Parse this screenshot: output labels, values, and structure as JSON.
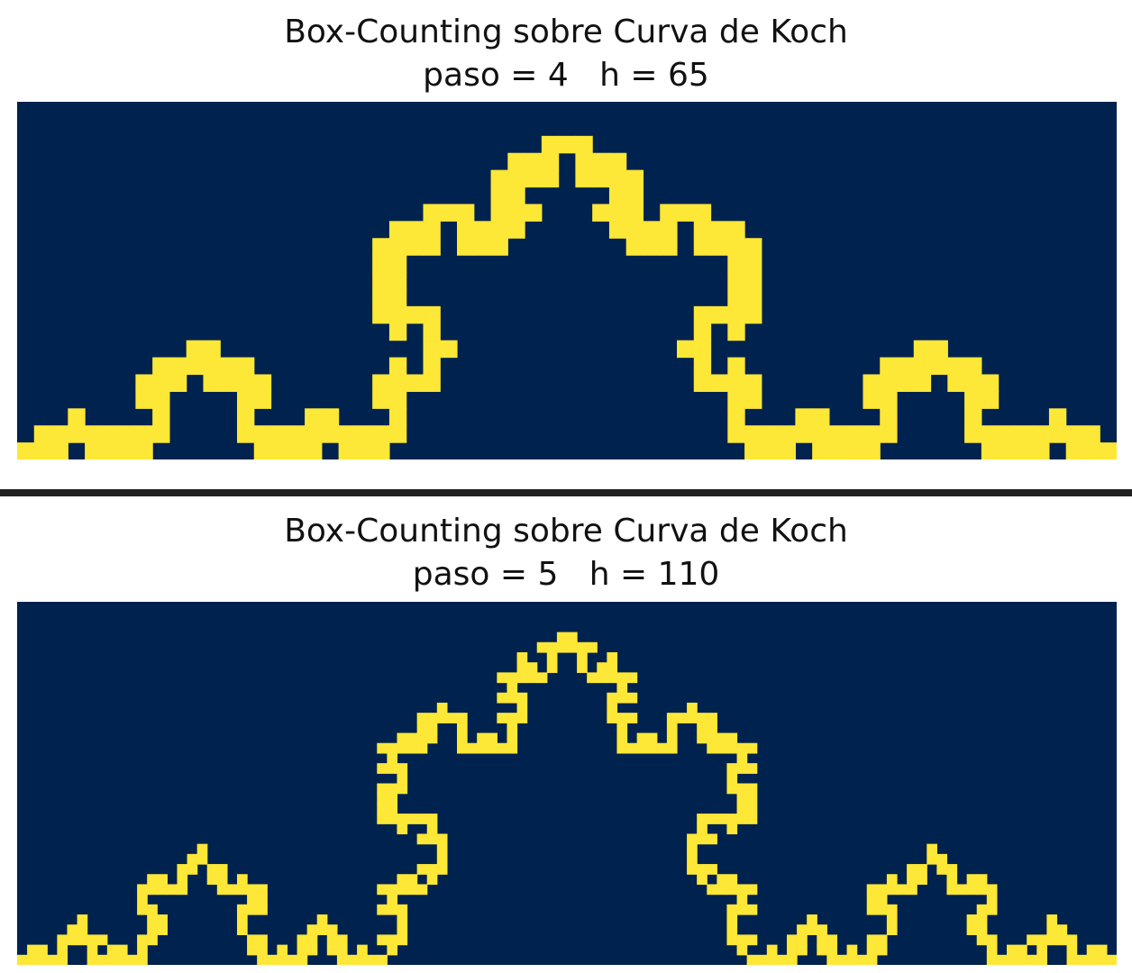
{
  "colors": {
    "background": "#00224e",
    "curve": "#fde737",
    "divider": "#222222",
    "text": "#111111"
  },
  "panels": [
    {
      "title": "Box-Counting sobre Curva de Koch",
      "subtitle": "paso = 4   h = 65",
      "chart_data": {
        "type": "heatmap",
        "title": "Box-Counting sobre Curva de Koch",
        "subtitle": "paso = 4   h = 65",
        "paso": 4,
        "h": 65,
        "koch_depth": 4,
        "axes": "off"
      }
    },
    {
      "title": "Box-Counting sobre Curva de Koch",
      "subtitle": "paso = 5   h = 110",
      "chart_data": {
        "type": "heatmap",
        "title": "Box-Counting sobre Curva de Koch",
        "subtitle": "paso = 5   h = 110",
        "paso": 5,
        "h": 110,
        "koch_depth": 4,
        "axes": "off"
      }
    }
  ]
}
